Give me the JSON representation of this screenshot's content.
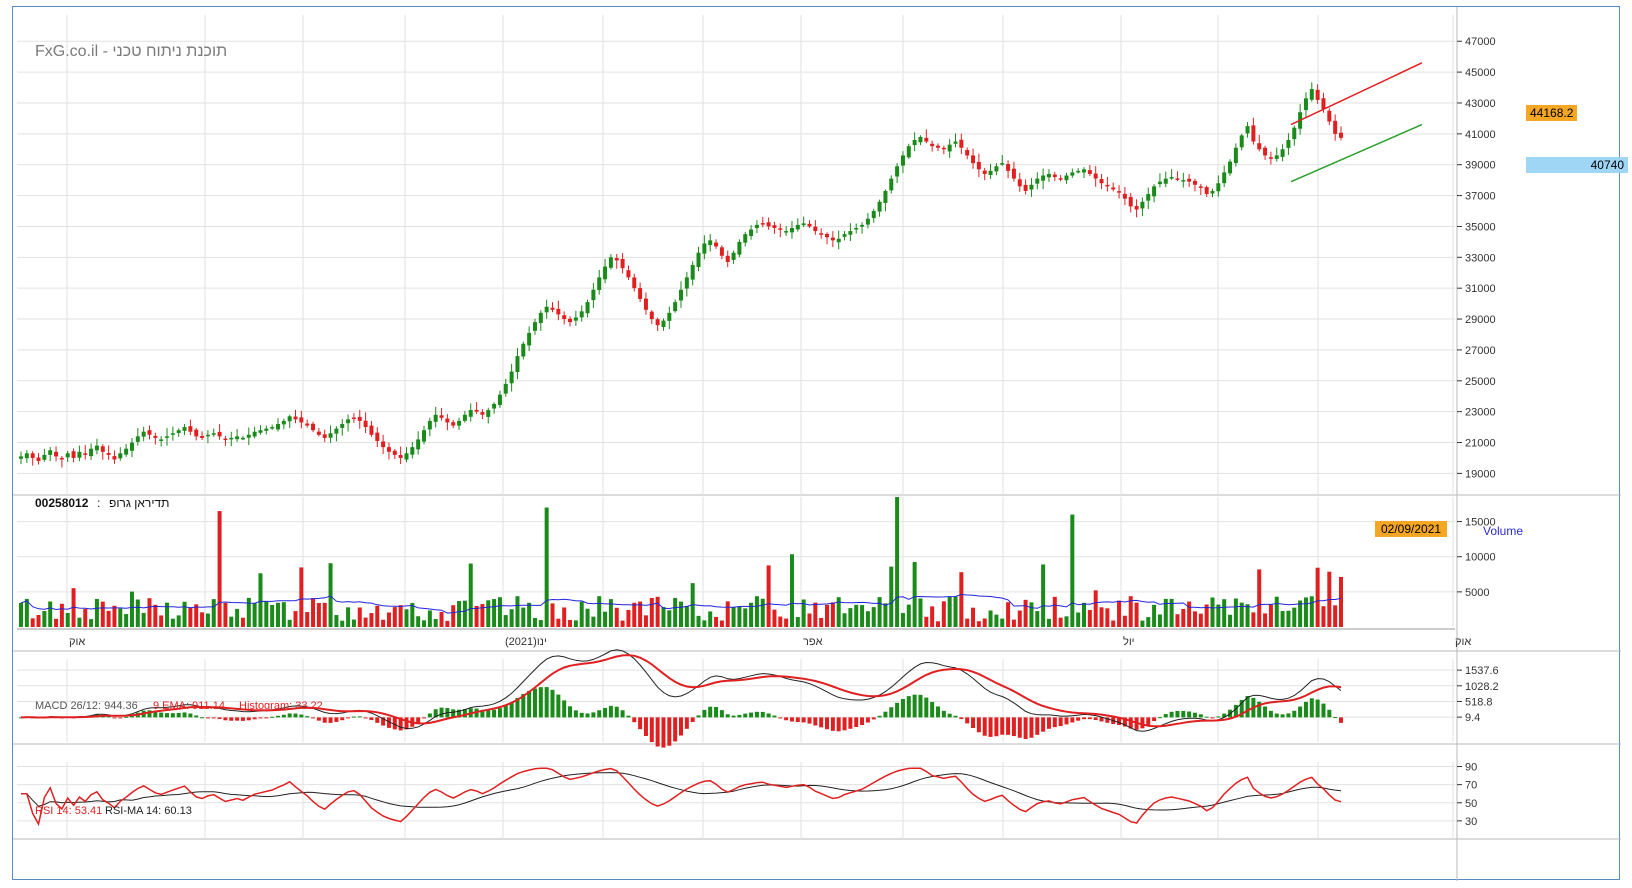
{
  "header": {
    "watermark": "FxG.co.il - תוכנת ניתוח טכני",
    "instrument_code": "00258012",
    "instrument_sep": ":",
    "instrument_name": "תדיראן גרופ",
    "date_label": "02/09/2021",
    "volume_label": "Volume",
    "last_price_badge": "44168.2",
    "current_price_badge": "40740"
  },
  "indicators": {
    "macd_label": "MACD 26/12: 944.36",
    "macd_ema_label": "9 EMA: 911.14",
    "macd_hist_label": "Histogram: 33.22",
    "rsi_label": "RSI 14: 53.41",
    "rsi_ma_label": "RSI-MA 14: 60.13"
  },
  "colors": {
    "up": "#1a8a1a",
    "down": "#e02020",
    "grid": "#e2e2e2",
    "volume_ma": "#2222dd",
    "resistance_line": "#e02020",
    "support_line": "#2aa02a",
    "accent_badge": "#f5a623",
    "current_badge": "#9fd6f5"
  },
  "chart_data": [
    {
      "type": "candlestick",
      "panel": "price",
      "y_ticks": [
        "47000",
        "45000",
        "43000",
        "41000",
        "39000",
        "37000",
        "35000",
        "33000",
        "31000",
        "29000",
        "27000",
        "25000",
        "23000",
        "21000",
        "19000"
      ],
      "ylim": [
        17600,
        48700
      ],
      "x_ticks": [
        "אוק",
        "ינו(2021)",
        "אפר",
        "יול",
        "אוק"
      ],
      "close_series": [
        20100,
        20300,
        20000,
        19800,
        20200,
        20500,
        20100,
        19900,
        20300,
        20000,
        20400,
        20200,
        20600,
        20800,
        20400,
        20200,
        19900,
        20300,
        20600,
        21000,
        21400,
        21700,
        21500,
        21300,
        21200,
        21400,
        21600,
        21800,
        22000,
        21700,
        21400,
        21300,
        21500,
        21600,
        21400,
        21200,
        21300,
        21400,
        21300,
        21500,
        21700,
        21800,
        21900,
        22000,
        22200,
        22400,
        22700,
        22500,
        22300,
        22100,
        21800,
        21500,
        21300,
        21600,
        21900,
        22200,
        22500,
        22600,
        22400,
        22000,
        21500,
        21100,
        20700,
        20400,
        20200,
        20000,
        20300,
        20700,
        21200,
        21800,
        22400,
        22800,
        22600,
        22300,
        22100,
        22400,
        22800,
        23100,
        23000,
        22800,
        23100,
        23500,
        24100,
        24800,
        25600,
        26600,
        27400,
        28100,
        28800,
        29400,
        29800,
        29600,
        29300,
        29000,
        28800,
        29100,
        29500,
        30100,
        30900,
        31700,
        32400,
        33000,
        32800,
        32300,
        31700,
        31000,
        30300,
        29600,
        29000,
        28600,
        28900,
        29400,
        30100,
        30900,
        31700,
        32500,
        33300,
        33900,
        34100,
        33700,
        33100,
        32700,
        33300,
        34000,
        34500,
        34800,
        35100,
        35200,
        35000,
        34900,
        34800,
        34700,
        34900,
        35100,
        35200,
        35000,
        34700,
        34500,
        34300,
        34100,
        34200,
        34500,
        34700,
        34900,
        35100,
        35500,
        36000,
        36600,
        37300,
        38100,
        38900,
        39600,
        40200,
        40600,
        40800,
        40500,
        40200,
        40100,
        40000,
        40300,
        40500,
        40100,
        39600,
        39100,
        38700,
        38400,
        38600,
        38900,
        39100,
        38600,
        38100,
        37600,
        37300,
        37700,
        38100,
        38300,
        38400,
        38200,
        38100,
        38300,
        38500,
        38600,
        38700,
        38400,
        38100,
        37800,
        37600,
        37400,
        37200,
        36800,
        36300,
        36100,
        36600,
        37100,
        37600,
        37900,
        38100,
        38200,
        38100,
        38000,
        37900,
        37700,
        37500,
        37100,
        37300,
        37800,
        38500,
        39200,
        40100,
        40900,
        41500,
        40500,
        40000,
        39600,
        39400,
        39600,
        40000,
        40600,
        41400,
        42400,
        43300,
        43900,
        43200,
        42600,
        41800,
        41000,
        40740
      ],
      "volume_ma_approx": 3400,
      "trendlines": [
        {
          "name": "resistance",
          "from": [
            0.902,
            41600
          ],
          "to": [
            0.995,
            45600
          ]
        },
        {
          "name": "support",
          "from": [
            0.902,
            37900
          ],
          "to": [
            0.995,
            41600
          ]
        }
      ]
    },
    {
      "type": "bar",
      "panel": "volume",
      "y_ticks": [
        "15000",
        "10000",
        "5000"
      ],
      "ylim": [
        0,
        18500
      ]
    },
    {
      "type": "line",
      "panel": "macd",
      "y_ticks": [
        "1537.6",
        "1028.2",
        "518.8",
        "9.4"
      ],
      "series_values": {
        "macd": 944.36,
        "ema9": 911.14,
        "histogram": 33.22
      }
    },
    {
      "type": "line",
      "panel": "rsi",
      "y_ticks": [
        "90",
        "70",
        "50",
        "30"
      ],
      "ylim": [
        10,
        95
      ],
      "series_values": {
        "rsi": 53.41,
        "rsi_ma": 60.13
      }
    }
  ]
}
